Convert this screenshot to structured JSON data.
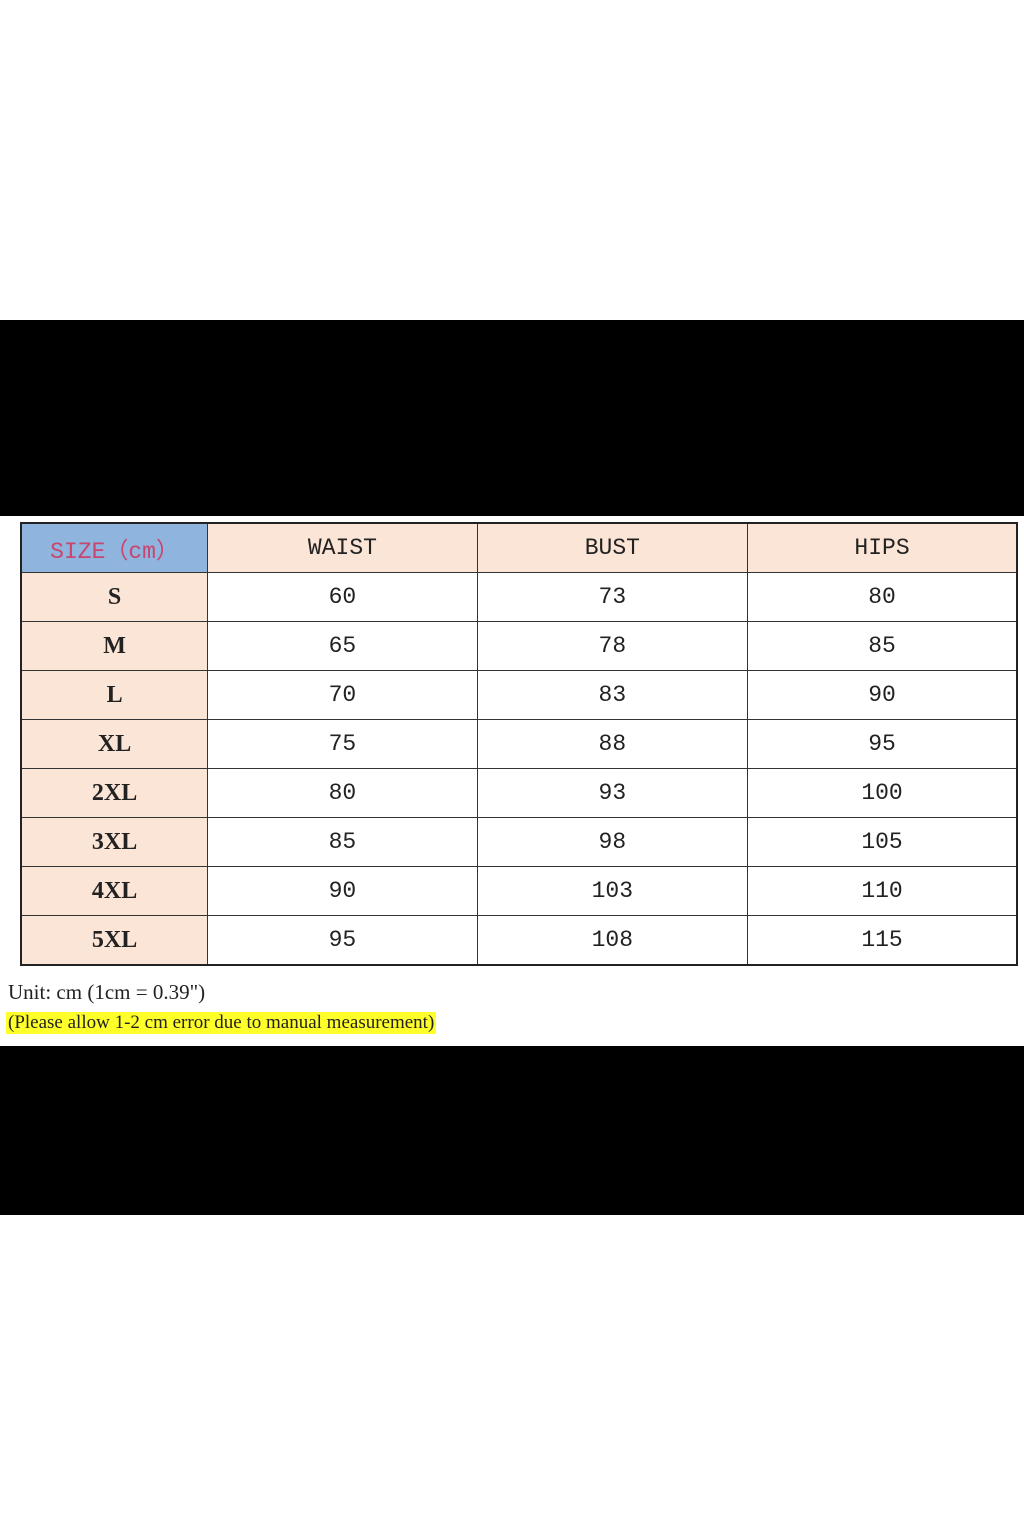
{
  "table": {
    "headers": [
      "SIZE（cm）",
      "WAIST",
      "BUST",
      "HIPS"
    ],
    "rows": [
      [
        "S",
        "60",
        "73",
        "80"
      ],
      [
        "M",
        "65",
        "78",
        "85"
      ],
      [
        "L",
        "70",
        "83",
        "90"
      ],
      [
        "XL",
        "75",
        "88",
        "95"
      ],
      [
        "2XL",
        "80",
        "93",
        "100"
      ],
      [
        "3XL",
        "85",
        "98",
        "105"
      ],
      [
        "4XL",
        "90",
        "103",
        "110"
      ],
      [
        "5XL",
        "95",
        "108",
        "115"
      ]
    ]
  },
  "unit_text": "Unit: cm (1cm = 0.39\")",
  "note_text": "(Please allow 1-2 cm error due to manual measurement)",
  "colors": {
    "header_bg": "#fbe5d6",
    "size_header_bg": "#8fb4dd",
    "size_header_text": "#c8456f",
    "highlight": "#ffff2a"
  }
}
